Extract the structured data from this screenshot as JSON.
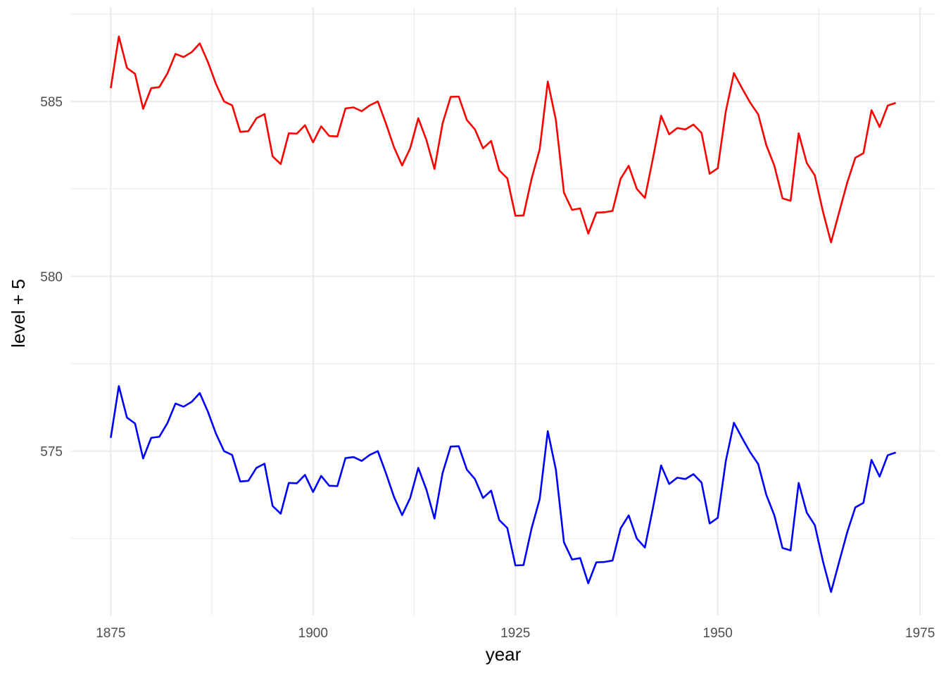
{
  "chart_data": {
    "type": "line",
    "title": "",
    "xlabel": "year",
    "ylabel": "level + 5",
    "xlim": [
      1870.1,
      1976.9
    ],
    "ylim": [
      570.3,
      587.7
    ],
    "x_ticks": [
      1875,
      1900,
      1925,
      1950,
      1975
    ],
    "x_tick_labels": [
      "1875",
      "1900",
      "1925",
      "1950",
      "1975"
    ],
    "y_ticks": [
      575,
      580,
      585
    ],
    "y_tick_labels": [
      "575",
      "580",
      "585"
    ],
    "x_minor_ticks": [
      1887.5,
      1912.5,
      1937.5,
      1962.5
    ],
    "y_minor_ticks": [
      572.5,
      577.5,
      582.5,
      587.5
    ],
    "grid": true,
    "legend": "none",
    "x": [
      1875,
      1876,
      1877,
      1878,
      1879,
      1880,
      1881,
      1882,
      1883,
      1884,
      1885,
      1886,
      1887,
      1888,
      1889,
      1890,
      1891,
      1892,
      1893,
      1894,
      1895,
      1896,
      1897,
      1898,
      1899,
      1900,
      1901,
      1902,
      1903,
      1904,
      1905,
      1906,
      1907,
      1908,
      1909,
      1910,
      1911,
      1912,
      1913,
      1914,
      1915,
      1916,
      1917,
      1918,
      1919,
      1920,
      1921,
      1922,
      1923,
      1924,
      1925,
      1926,
      1927,
      1928,
      1929,
      1930,
      1931,
      1932,
      1933,
      1934,
      1935,
      1936,
      1937,
      1938,
      1939,
      1940,
      1941,
      1942,
      1943,
      1944,
      1945,
      1946,
      1947,
      1948,
      1949,
      1950,
      1951,
      1952,
      1953,
      1954,
      1955,
      1956,
      1957,
      1958,
      1959,
      1960,
      1961,
      1962,
      1963,
      1964,
      1965,
      1966,
      1967,
      1968,
      1969,
      1970,
      1971,
      1972
    ],
    "series": [
      {
        "color": "#ff0000",
        "values": [
          585.38,
          586.86,
          585.96,
          585.79,
          584.79,
          585.38,
          585.41,
          585.8,
          586.36,
          586.27,
          586.41,
          586.66,
          586.13,
          585.5,
          585.0,
          584.89,
          584.13,
          584.15,
          584.52,
          584.64,
          583.43,
          583.21,
          584.09,
          584.08,
          584.32,
          583.83,
          584.29,
          584.01,
          584.0,
          584.8,
          584.83,
          584.72,
          584.89,
          585.0,
          584.37,
          583.69,
          583.17,
          583.66,
          584.52,
          583.9,
          583.07,
          584.37,
          585.13,
          585.14,
          584.47,
          584.2,
          583.66,
          583.87,
          583.03,
          582.8,
          581.73,
          581.74,
          582.79,
          583.63,
          585.57,
          584.47,
          582.39,
          581.9,
          581.94,
          581.22,
          581.82,
          581.83,
          581.87,
          582.79,
          583.16,
          582.5,
          582.24,
          583.38,
          584.59,
          584.06,
          584.24,
          584.2,
          584.34,
          584.1,
          582.93,
          583.09,
          584.72,
          585.81,
          585.38,
          584.97,
          584.63,
          583.75,
          583.16,
          582.23,
          582.16,
          584.09,
          583.24,
          582.88,
          581.85,
          580.97,
          581.83,
          582.68,
          583.39,
          583.52,
          584.75,
          584.27,
          584.88,
          584.96
        ]
      },
      {
        "color": "#0000ff",
        "values": [
          575.38,
          576.86,
          575.96,
          575.79,
          574.79,
          575.38,
          575.41,
          575.8,
          576.36,
          576.27,
          576.41,
          576.66,
          576.13,
          575.5,
          575.0,
          574.89,
          574.13,
          574.15,
          574.52,
          574.64,
          573.43,
          573.21,
          574.09,
          574.08,
          574.32,
          573.83,
          574.29,
          574.01,
          574.0,
          574.8,
          574.83,
          574.72,
          574.89,
          575.0,
          574.37,
          573.69,
          573.17,
          573.66,
          574.52,
          573.9,
          573.07,
          574.37,
          575.13,
          575.14,
          574.47,
          574.2,
          573.66,
          573.87,
          573.03,
          572.8,
          571.73,
          571.74,
          572.79,
          573.63,
          575.57,
          574.47,
          572.39,
          571.9,
          571.94,
          571.22,
          571.82,
          571.83,
          571.87,
          572.79,
          573.16,
          572.5,
          572.24,
          573.38,
          574.59,
          574.06,
          574.24,
          574.2,
          574.34,
          574.1,
          572.93,
          573.09,
          574.72,
          575.81,
          575.38,
          574.97,
          574.63,
          573.75,
          573.16,
          572.23,
          572.16,
          574.09,
          573.24,
          572.88,
          571.85,
          570.97,
          571.83,
          572.68,
          573.39,
          573.52,
          574.75,
          574.27,
          574.88,
          574.96
        ]
      }
    ]
  }
}
